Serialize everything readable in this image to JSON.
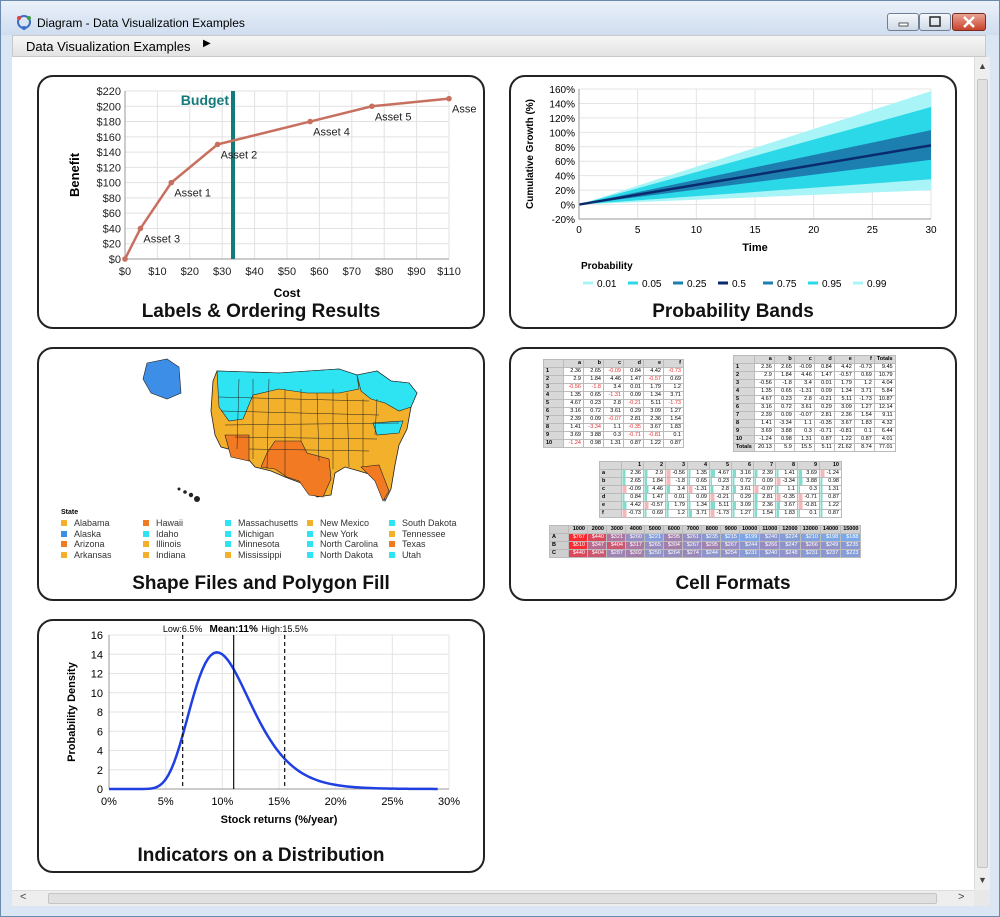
{
  "window": {
    "title": "Diagram - Data Visualization Examples"
  },
  "breadcrumb": {
    "label": "Data Visualization Examples",
    "arrow": "▶"
  },
  "cards": {
    "labels": {
      "caption": "Labels & Ordering Results"
    },
    "bands": {
      "caption": "Probability Bands"
    },
    "shapes": {
      "caption": "Shape Files and Polygon Fill"
    },
    "cells": {
      "caption": "Cell Formats"
    },
    "dist": {
      "caption": "Indicators on a Distribution"
    }
  },
  "chart_data": [
    {
      "type": "line",
      "id": "labels",
      "xlabel": "Cost",
      "ylabel": "Benefit",
      "xticks": [
        "$0",
        "$10",
        "$20",
        "$30",
        "$40",
        "$50",
        "$60",
        "$70",
        "$80",
        "$90",
        "$110"
      ],
      "yticks": [
        "$0",
        "$20",
        "$40",
        "$60",
        "$80",
        "$100",
        "$120",
        "$140",
        "$160",
        "$180",
        "$200",
        "$220"
      ],
      "xlim": [
        0,
        105
      ],
      "ylim": [
        0,
        220
      ],
      "x": [
        0,
        5,
        15,
        30,
        60,
        80,
        105
      ],
      "y": [
        0,
        40,
        100,
        150,
        180,
        200,
        210
      ],
      "point_labels": [
        "",
        "Asset 3",
        "Asset 1",
        "Asset 2",
        "Asset 4",
        "Asset 5",
        "Asse"
      ],
      "marker": {
        "label": "Budget",
        "x": 35
      },
      "line_color": "#c87060",
      "marker_color": "#157a7a"
    },
    {
      "type": "area",
      "id": "bands",
      "xlabel": "Time",
      "ylabel": "Cumulative Growth (%)",
      "xticks": [
        "0",
        "5",
        "10",
        "15",
        "20",
        "25",
        "30"
      ],
      "yticks": [
        "-20%",
        "0%",
        "20%",
        "40%",
        "60%",
        "80%",
        "100%",
        "120%",
        "140%",
        "160%"
      ],
      "xlim": [
        0,
        30
      ],
      "ylim": [
        -20,
        160
      ],
      "legend_title": "Probability",
      "legend": [
        "0.01",
        "0.05",
        "0.25",
        "0.5",
        "0.75",
        "0.95",
        "0.99"
      ],
      "end_values": {
        "0.01": 20,
        "0.05": 35,
        "0.25": 62,
        "0.5": 82,
        "0.75": 103,
        "0.95": 135,
        "0.99": 157
      },
      "colors": {
        "outer": "#a8f4f6",
        "mid": "#2ad8e8",
        "inner": "#1d7fb0",
        "median": "#0a2a6e"
      }
    },
    {
      "type": "line",
      "id": "dist",
      "xlabel": "Stock returns (%/year)",
      "ylabel": "Probability Density",
      "xticks": [
        "0%",
        "5%",
        "10%",
        "15%",
        "20%",
        "25%",
        "30%"
      ],
      "yticks": [
        "0",
        "2",
        "4",
        "6",
        "8",
        "10",
        "12",
        "14",
        "16"
      ],
      "xlim": [
        0,
        30
      ],
      "ylim": [
        0,
        16
      ],
      "peak": {
        "x": 10,
        "y": 14.2
      },
      "indicators": [
        {
          "label": "Low:",
          "value": "6.5%",
          "x": 6.5,
          "style": "dashed"
        },
        {
          "label": "Mean:",
          "value": "11%",
          "x": 11,
          "style": "solid"
        },
        {
          "label": "High:",
          "value": "15.5%",
          "x": 15.5,
          "style": "dashed"
        }
      ],
      "curve_color": "#1f3fe0"
    }
  ],
  "map": {
    "legend_title": "State",
    "states": [
      {
        "name": "Alabama",
        "color": "#f3b02a"
      },
      {
        "name": "Alaska",
        "color": "#3d8ee6"
      },
      {
        "name": "Arizona",
        "color": "#f27a22"
      },
      {
        "name": "Arkansas",
        "color": "#f3b02a"
      },
      {
        "name": "Hawaii",
        "color": "#f27a22"
      },
      {
        "name": "Idaho",
        "color": "#2ee3f2"
      },
      {
        "name": "Illinois",
        "color": "#f3b02a"
      },
      {
        "name": "Indiana",
        "color": "#f3b02a"
      },
      {
        "name": "Massachusetts",
        "color": "#2ee3f2"
      },
      {
        "name": "Michigan",
        "color": "#2ee3f2"
      },
      {
        "name": "Minnesota",
        "color": "#2ee3f2"
      },
      {
        "name": "Mississippi",
        "color": "#f3b02a"
      },
      {
        "name": "New Mexico",
        "color": "#f3b02a"
      },
      {
        "name": "New York",
        "color": "#2ee3f2"
      },
      {
        "name": "North Carolina",
        "color": "#2ee3f2"
      },
      {
        "name": "North Dakota",
        "color": "#2ee3f2"
      },
      {
        "name": "South Dakota",
        "color": "#2ee3f2"
      },
      {
        "name": "Tennessee",
        "color": "#f3b02a"
      },
      {
        "name": "Texas",
        "color": "#f27a22"
      },
      {
        "name": "Utah",
        "color": "#2ee3f2"
      }
    ]
  },
  "tables": {
    "t1": {
      "headers": [
        "",
        "a",
        "b",
        "c",
        "d",
        "e",
        "f"
      ],
      "rows": [
        [
          "1",
          "2.36",
          "2.65",
          "-0.09",
          "0.84",
          "4.42",
          "-0.73"
        ],
        [
          "2",
          "2.9",
          "1.84",
          "4.46",
          "1.47",
          "-0.57",
          "0.69"
        ],
        [
          "3",
          "-0.56",
          "-1.8",
          "3.4",
          "0.01",
          "1.79",
          "1.2"
        ],
        [
          "4",
          "1.35",
          "0.65",
          "-1.31",
          "0.09",
          "1.34",
          "3.71"
        ],
        [
          "5",
          "4.67",
          "0.23",
          "2.8",
          "-0.21",
          "5.11",
          "-1.73"
        ],
        [
          "6",
          "3.16",
          "0.72",
          "3.61",
          "0.29",
          "3.09",
          "1.27"
        ],
        [
          "7",
          "2.39",
          "0.09",
          "-0.07",
          "2.81",
          "2.36",
          "1.54"
        ],
        [
          "8",
          "1.41",
          "-3.34",
          "1.1",
          "-0.35",
          "3.67",
          "1.83"
        ],
        [
          "9",
          "3.69",
          "3.88",
          "0.3",
          "-0.71",
          "-0.81",
          "0.1"
        ],
        [
          "10",
          "-1.24",
          "0.98",
          "1.31",
          "0.87",
          "1.22",
          "0.87"
        ]
      ]
    },
    "t2": {
      "headers": [
        "",
        "a",
        "b",
        "c",
        "d",
        "e",
        "f",
        "Totals"
      ],
      "rows": [
        [
          "1",
          "2.36",
          "2.65",
          "-0.09",
          "0.84",
          "4.42",
          "-0.73",
          "9.45"
        ],
        [
          "2",
          "2.9",
          "1.84",
          "4.46",
          "1.47",
          "-0.57",
          "0.69",
          "10.79"
        ],
        [
          "3",
          "-0.56",
          "-1.8",
          "3.4",
          "0.01",
          "1.79",
          "1.2",
          "4.04"
        ],
        [
          "4",
          "1.35",
          "0.65",
          "-1.31",
          "0.09",
          "1.34",
          "3.71",
          "5.84"
        ],
        [
          "5",
          "4.67",
          "0.23",
          "2.8",
          "-0.21",
          "5.11",
          "-1.73",
          "10.87"
        ],
        [
          "6",
          "3.16",
          "0.72",
          "3.61",
          "0.29",
          "3.09",
          "1.27",
          "12.14"
        ],
        [
          "7",
          "2.39",
          "0.09",
          "-0.07",
          "2.81",
          "2.36",
          "1.54",
          "9.11"
        ],
        [
          "8",
          "1.41",
          "-3.34",
          "1.1",
          "-0.35",
          "3.67",
          "1.83",
          "4.32"
        ],
        [
          "9",
          "3.69",
          "3.88",
          "0.3",
          "-0.71",
          "-0.81",
          "0.1",
          "6.44"
        ],
        [
          "10",
          "-1.24",
          "0.98",
          "1.31",
          "0.87",
          "1.22",
          "0.87",
          "4.01"
        ],
        [
          "Totals",
          "20.13",
          "5.9",
          "15.5",
          "5.11",
          "21.62",
          "8.74",
          "77.01"
        ]
      ]
    },
    "t3": {
      "headers": [
        "",
        "1",
        "2",
        "3",
        "4",
        "5",
        "6",
        "7",
        "8",
        "9",
        "10"
      ],
      "rows": [
        [
          "a",
          "2.36",
          "2.9",
          "-0.56",
          "1.35",
          "4.67",
          "3.16",
          "2.39",
          "1.41",
          "3.69",
          "-1.24"
        ],
        [
          "b",
          "2.65",
          "1.84",
          "-1.8",
          "0.65",
          "0.23",
          "0.72",
          "0.09",
          "-3.34",
          "3.88",
          "0.98"
        ],
        [
          "c",
          "-0.09",
          "4.46",
          "3.4",
          "-1.31",
          "2.8",
          "3.61",
          "-0.07",
          "1.1",
          "0.3",
          "1.31"
        ],
        [
          "d",
          "0.84",
          "1.47",
          "0.01",
          "0.09",
          "-0.21",
          "0.29",
          "2.81",
          "-0.35",
          "-0.71",
          "0.87"
        ],
        [
          "e",
          "4.42",
          "-0.57",
          "1.79",
          "1.34",
          "5.11",
          "3.09",
          "2.36",
          "3.67",
          "-0.81",
          "1.22"
        ],
        [
          "f",
          "-0.73",
          "0.69",
          "1.2",
          "3.71",
          "-1.73",
          "1.27",
          "1.54",
          "1.83",
          "0.1",
          "0.87"
        ]
      ]
    },
    "t4": {
      "headers": [
        "",
        "1000",
        "2000",
        "3000",
        "4000",
        "5000",
        "6000",
        "7000",
        "8000",
        "9000",
        "10000",
        "11000",
        "12000",
        "13000",
        "14000",
        "15000"
      ],
      "rows": [
        [
          "A",
          "$767",
          "$440",
          "$321",
          "$260",
          "$221",
          "$295",
          "$261",
          "$235",
          "$215",
          "$199",
          "$240",
          "$224",
          "$210",
          "$198",
          "$188"
        ],
        [
          "B",
          "$510",
          "$347",
          "$404",
          "$317",
          "$265",
          "$304",
          "$267",
          "$295",
          "$267",
          "$244",
          "$266",
          "$247",
          "$266",
          "$249",
          "$235"
        ],
        [
          "C",
          "$440",
          "$404",
          "$287",
          "$302",
          "$250",
          "$264",
          "$274",
          "$244",
          "$254",
          "$231",
          "$240",
          "$248",
          "$231",
          "$237",
          "$223"
        ]
      ]
    }
  }
}
